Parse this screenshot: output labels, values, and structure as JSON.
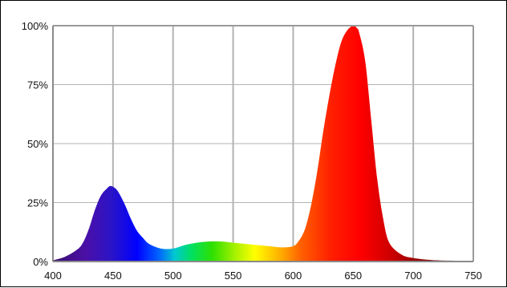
{
  "chart_data": {
    "type": "area",
    "title": "",
    "xlabel": "",
    "ylabel": "",
    "xlim": [
      400,
      750
    ],
    "ylim": [
      0,
      100
    ],
    "x_ticks": [
      400,
      450,
      500,
      550,
      600,
      650,
      700,
      750
    ],
    "x_tick_labels": [
      "400",
      "450",
      "500",
      "550",
      "600",
      "650",
      "700",
      "750"
    ],
    "y_ticks": [
      0,
      25,
      50,
      75,
      100
    ],
    "y_tick_labels": [
      "0%",
      "25%",
      "50%",
      "75%",
      "100%"
    ],
    "grid": true,
    "legend": "none",
    "fill": "visible-spectrum gradient",
    "x": [
      400,
      410,
      420,
      425,
      430,
      435,
      440,
      445,
      448,
      452,
      455,
      460,
      465,
      470,
      475,
      480,
      490,
      500,
      510,
      520,
      530,
      540,
      550,
      560,
      570,
      580,
      590,
      600,
      605,
      610,
      615,
      620,
      625,
      630,
      635,
      640,
      645,
      650,
      653,
      655,
      660,
      665,
      670,
      675,
      680,
      690,
      700,
      720,
      750
    ],
    "values": [
      0.5,
      2,
      5,
      8,
      14,
      22,
      28,
      31,
      32,
      31,
      29,
      24,
      18,
      13,
      10,
      7.5,
      5.5,
      5.5,
      7,
      8,
      8.5,
      8.5,
      8,
      7.5,
      7,
      6.5,
      6,
      6.5,
      9,
      14,
      24,
      38,
      55,
      70,
      83,
      93,
      98,
      100,
      99,
      97,
      85,
      60,
      35,
      18,
      8,
      3,
      1.5,
      0.5,
      0.3
    ]
  }
}
